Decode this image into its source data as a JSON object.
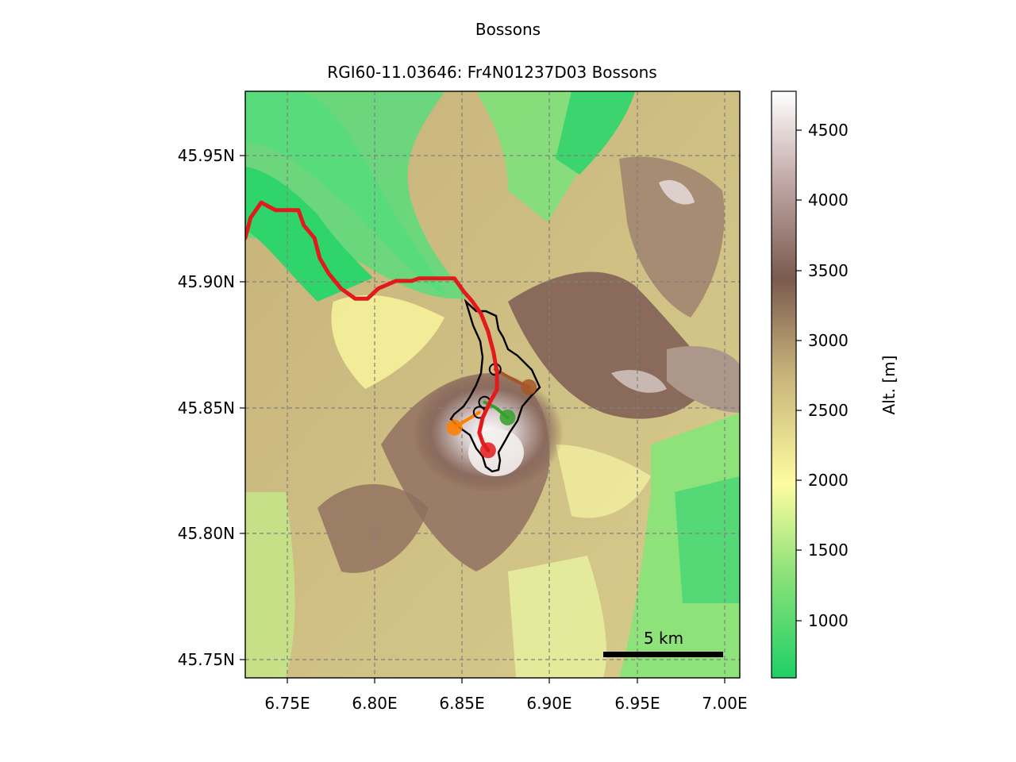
{
  "figure": {
    "title": "Bossons",
    "subtitle": "RGI60-11.03646: Fr4N01237D03 Bossons"
  },
  "map": {
    "x_ticks": [
      "6.75E",
      "6.80E",
      "6.85E",
      "6.90E",
      "6.95E",
      "7.00E"
    ],
    "y_ticks": [
      "45.95N",
      "45.90N",
      "45.85N",
      "45.80N",
      "45.75N"
    ],
    "scale_bar_label": "5 km",
    "grid": true
  },
  "colorbar": {
    "label": "Alt. [m]",
    "ticks": [
      "4500",
      "4000",
      "3500",
      "3000",
      "2500",
      "2000",
      "1500",
      "1000"
    ],
    "colors": {
      "low": "#1fd066",
      "mid_green": "#8ee27a",
      "yellow": "#fefca0",
      "tan": "#c7b27a",
      "brown": "#7b5a4e",
      "high": "#ffffff"
    }
  },
  "overlay": {
    "main_flowline_color": "#e31a1c",
    "tributary_colors": [
      "#ff7f00",
      "#33a02c",
      "#a65628"
    ],
    "outline_color": "#000000"
  },
  "chart_data": {
    "type": "heatmap",
    "title": "Bossons",
    "subtitle": "RGI60-11.03646: Fr4N01237D03 Bossons",
    "xlim": [
      6.727,
      7.006
    ],
    "ylim": [
      45.743,
      45.975
    ],
    "x_ticks": [
      6.75,
      6.8,
      6.85,
      6.9,
      6.95,
      7.0
    ],
    "y_ticks": [
      45.95,
      45.9,
      45.85,
      45.8,
      45.75
    ],
    "colorbar": {
      "label": "Alt. [m]",
      "range": [
        580,
        4790
      ],
      "ticks": [
        1000,
        1500,
        2000,
        2500,
        3000,
        3500,
        4000,
        4500
      ]
    },
    "main_flowline": {
      "color": "#e31a1c",
      "points": [
        [
          6.727,
          45.917
        ],
        [
          6.73,
          45.925
        ],
        [
          6.736,
          45.931
        ],
        [
          6.744,
          45.928
        ],
        [
          6.757,
          45.928
        ],
        [
          6.76,
          45.922
        ],
        [
          6.766,
          45.917
        ],
        [
          6.769,
          45.909
        ],
        [
          6.774,
          45.903
        ],
        [
          6.781,
          45.897
        ],
        [
          6.789,
          45.893
        ],
        [
          6.796,
          45.893
        ],
        [
          6.802,
          45.897
        ],
        [
          6.812,
          45.9
        ],
        [
          6.821,
          45.9
        ],
        [
          6.825,
          45.901
        ],
        [
          6.845,
          45.901
        ],
        [
          6.85,
          45.896
        ],
        [
          6.855,
          45.892
        ],
        [
          6.86,
          45.887
        ],
        [
          6.864,
          45.88
        ],
        [
          6.867,
          45.872
        ],
        [
          6.869,
          45.864
        ],
        [
          6.869,
          45.857
        ],
        [
          6.865,
          45.852
        ],
        [
          6.861,
          45.846
        ],
        [
          6.859,
          45.84
        ],
        [
          6.861,
          45.836
        ],
        [
          6.864,
          45.833
        ]
      ]
    },
    "tributaries": [
      {
        "color": "#ff7f00",
        "points": [
          [
            6.845,
            45.842
          ],
          [
            6.852,
            45.845
          ],
          [
            6.859,
            45.848
          ]
        ]
      },
      {
        "color": "#33a02c",
        "points": [
          [
            6.875,
            45.846
          ],
          [
            6.868,
            45.85
          ],
          [
            6.862,
            45.852
          ]
        ]
      },
      {
        "color": "#a65628",
        "points": [
          [
            6.887,
            45.858
          ],
          [
            6.878,
            45.861
          ],
          [
            6.868,
            45.865
          ]
        ]
      }
    ],
    "scale_bar": {
      "label": "5 km",
      "x": [
        6.93,
        6.997
      ],
      "y": 45.752
    }
  }
}
